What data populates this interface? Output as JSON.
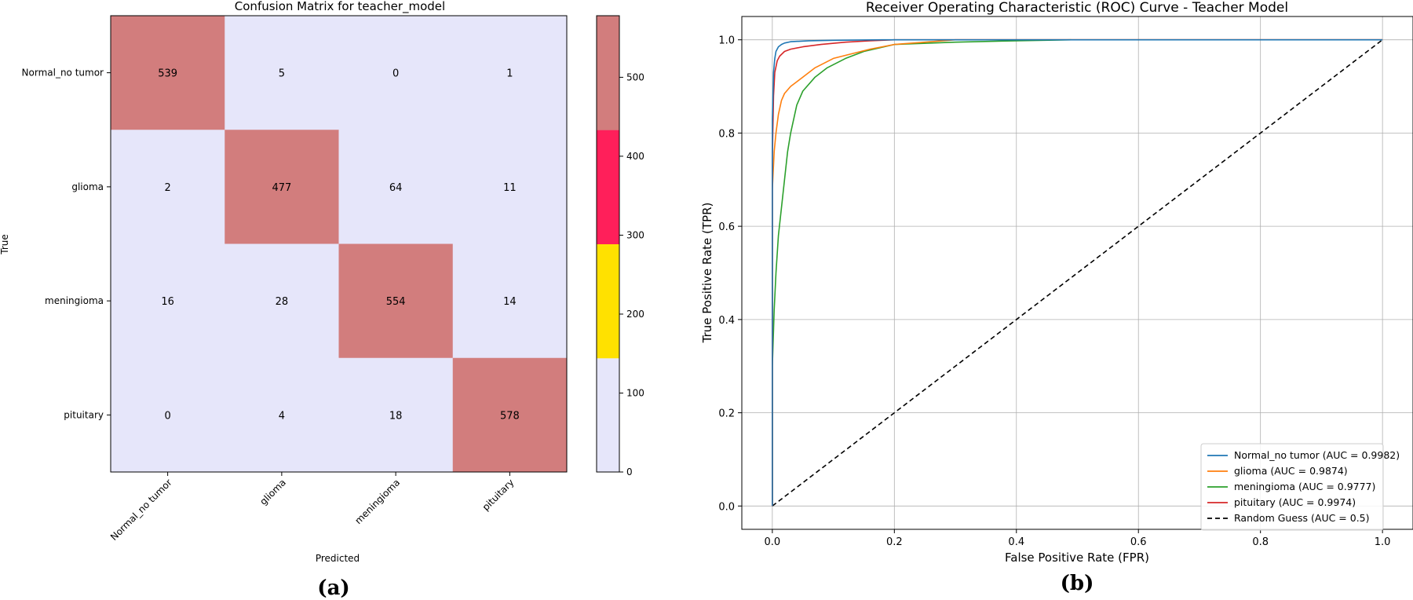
{
  "chart_data": [
    {
      "type": "heatmap",
      "title": "Confusion Matrix for teacher_model",
      "xlabel": "Predicted",
      "ylabel": "True",
      "classes": [
        "Normal_no tumor",
        "glioma",
        "meningioma",
        "pituitary"
      ],
      "matrix": [
        [
          539,
          5,
          0,
          1
        ],
        [
          2,
          477,
          64,
          11
        ],
        [
          16,
          28,
          554,
          14
        ],
        [
          0,
          4,
          18,
          578
        ]
      ],
      "colorbar": {
        "ticks": [
          "0",
          "100",
          "200",
          "300",
          "400",
          "500"
        ],
        "range": [
          0,
          578
        ],
        "levels": [
          {
            "from": 0,
            "to": 144.5,
            "color": "#e6e6fa"
          },
          {
            "from": 144.5,
            "to": 289,
            "color": "#ffe100"
          },
          {
            "from": 289,
            "to": 433.5,
            "color": "#ff1f5a"
          },
          {
            "from": 433.5,
            "to": 578,
            "color": "#d27d7d"
          }
        ]
      },
      "panel_label": "(a)"
    },
    {
      "type": "line",
      "title": "Receiver Operating Characteristic (ROC) Curve - Teacher Model",
      "xlabel": "False Positive Rate (FPR)",
      "ylabel": "True Positive Rate (TPR)",
      "xlim": [
        -0.05,
        1.05
      ],
      "ylim": [
        -0.05,
        1.05
      ],
      "xticks": [
        "0.0",
        "0.2",
        "0.4",
        "0.6",
        "0.8",
        "1.0"
      ],
      "yticks": [
        "0.0",
        "0.2",
        "0.4",
        "0.6",
        "0.8",
        "1.0"
      ],
      "grid": true,
      "legend_position": "bottom-right",
      "series": [
        {
          "name": "Normal_no tumor (AUC = 0.9982)",
          "color": "#1f77b4",
          "dashed": false,
          "x": [
            0,
            0.0,
            0.002,
            0.004,
            0.006,
            0.01,
            0.015,
            0.02,
            0.03,
            0.06,
            0.1,
            0.18,
            1.0
          ],
          "y": [
            0,
            0.83,
            0.93,
            0.96,
            0.975,
            0.985,
            0.99,
            0.993,
            0.996,
            0.998,
            0.999,
            1.0,
            1.0
          ]
        },
        {
          "name": "glioma (AUC = 0.9874)",
          "color": "#ff7f0e",
          "dashed": false,
          "x": [
            0,
            0.0,
            0.003,
            0.006,
            0.01,
            0.015,
            0.02,
            0.03,
            0.04,
            0.05,
            0.07,
            0.1,
            0.13,
            0.16,
            0.2,
            0.25,
            0.3,
            1.0
          ],
          "y": [
            0,
            0.68,
            0.76,
            0.8,
            0.84,
            0.87,
            0.885,
            0.9,
            0.91,
            0.92,
            0.94,
            0.96,
            0.97,
            0.98,
            0.99,
            0.995,
            1.0,
            1.0
          ]
        },
        {
          "name": "meningioma (AUC = 0.9777)",
          "color": "#2ca02c",
          "dashed": false,
          "x": [
            0,
            0.0,
            0.003,
            0.006,
            0.01,
            0.015,
            0.02,
            0.025,
            0.03,
            0.04,
            0.05,
            0.07,
            0.09,
            0.12,
            0.15,
            0.2,
            0.3,
            0.4,
            0.49
          ],
          "y": [
            0,
            0.3,
            0.42,
            0.5,
            0.58,
            0.64,
            0.7,
            0.76,
            0.8,
            0.86,
            0.89,
            0.92,
            0.94,
            0.96,
            0.975,
            0.99,
            0.995,
            0.998,
            1.0
          ]
        },
        {
          "name": "pituitary (AUC = 0.9974)",
          "color": "#d62728",
          "dashed": false,
          "x": [
            0,
            0.0,
            0.002,
            0.004,
            0.008,
            0.012,
            0.02,
            0.03,
            0.05,
            0.08,
            0.12,
            0.16,
            0.2,
            1.0
          ],
          "y": [
            0,
            0.75,
            0.88,
            0.93,
            0.955,
            0.965,
            0.975,
            0.98,
            0.985,
            0.99,
            0.995,
            0.998,
            1.0,
            1.0
          ]
        },
        {
          "name": "Random Guess (AUC = 0.5)",
          "color": "#000000",
          "dashed": true,
          "x": [
            0,
            1
          ],
          "y": [
            0,
            1
          ]
        }
      ],
      "panel_label": "(b)"
    }
  ]
}
